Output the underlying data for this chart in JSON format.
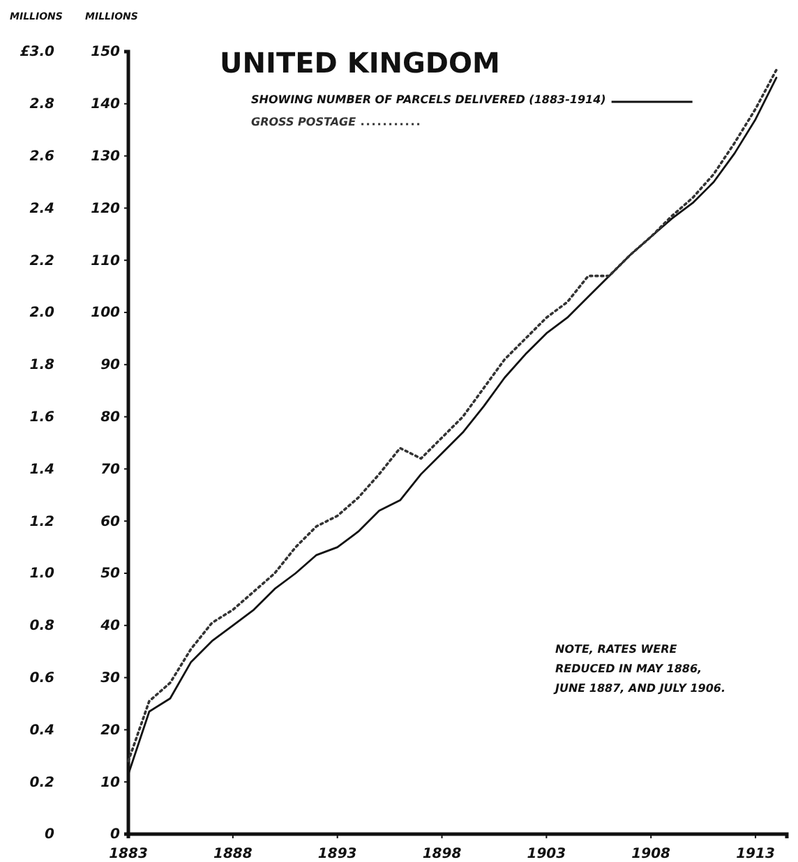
{
  "chart_data": {
    "type": "line",
    "title": "UNITED KINGDOM",
    "ylabel": "MILLIONS",
    "y2label": "MILLIONS",
    "x": [
      1883,
      1884,
      1885,
      1886,
      1887,
      1888,
      1889,
      1890,
      1891,
      1892,
      1893,
      1894,
      1895,
      1896,
      1897,
      1898,
      1899,
      1900,
      1901,
      1902,
      1903,
      1904,
      1905,
      1906,
      1907,
      1908,
      1909,
      1910,
      1911,
      1912,
      1913,
      1914
    ],
    "series": [
      {
        "name": "SHOWING NUMBER OF PARCELS DELIVERED (1883-1914)",
        "color": "#111111",
        "line_style": "solid",
        "values": [
          11.5,
          23.5,
          26,
          33,
          37,
          40,
          43,
          47,
          50,
          53.5,
          55,
          58,
          62,
          64,
          69,
          73,
          77,
          82,
          87.5,
          92,
          96,
          99,
          103,
          107,
          111,
          114.5,
          118,
          121,
          125,
          130.5,
          137,
          145
        ]
      },
      {
        "name": "GROSS POSTAGE",
        "color": "#333333",
        "line_style": "dotted",
        "axis": "y2",
        "values": [
          0.28,
          0.51,
          0.58,
          0.71,
          0.81,
          0.86,
          0.93,
          1.0,
          1.1,
          1.18,
          1.22,
          1.29,
          1.38,
          1.48,
          1.44,
          1.52,
          1.6,
          1.71,
          1.82,
          1.9,
          1.98,
          2.04,
          2.14,
          2.14,
          2.22,
          2.29,
          2.37,
          2.44,
          2.53,
          2.65,
          2.78,
          2.93
        ]
      }
    ],
    "xlim": [
      1883,
      1914.5
    ],
    "xticks": [
      1883,
      1888,
      1893,
      1898,
      1903,
      1908,
      1913
    ],
    "ylim": [
      0,
      150
    ],
    "yticks": [
      0,
      10,
      20,
      30,
      40,
      50,
      60,
      70,
      80,
      90,
      100,
      110,
      120,
      130,
      140,
      150
    ],
    "y2lim": [
      0,
      3.0
    ],
    "y2ticks": [
      0,
      {
        "value": 0.2,
        "label": "0.2"
      },
      {
        "value": 0.4,
        "label": "0.4"
      },
      {
        "value": 0.6,
        "label": "0.6"
      },
      {
        "value": 0.8,
        "label": "0.8"
      },
      {
        "value": 1.0,
        "label": "1.0"
      },
      {
        "value": 1.2,
        "label": "1.2"
      },
      {
        "value": 1.4,
        "label": "1.4"
      },
      {
        "value": 1.6,
        "label": "1.6"
      },
      {
        "value": 1.8,
        "label": "1.8"
      },
      {
        "value": 2.0,
        "label": "2.0"
      },
      {
        "value": 2.2,
        "label": "2.2"
      },
      {
        "value": 2.4,
        "label": "2.4"
      },
      {
        "value": 2.6,
        "label": "2.6"
      },
      {
        "value": 2.8,
        "label": "2.8"
      },
      {
        "value": 3.0,
        "label": "£3.0"
      }
    ],
    "legend": "top",
    "grid": false,
    "annotations": [
      "NOTE, RATES WERE REDUCED IN MAY 1886, JUNE 1887, AND JULY 1906."
    ]
  }
}
